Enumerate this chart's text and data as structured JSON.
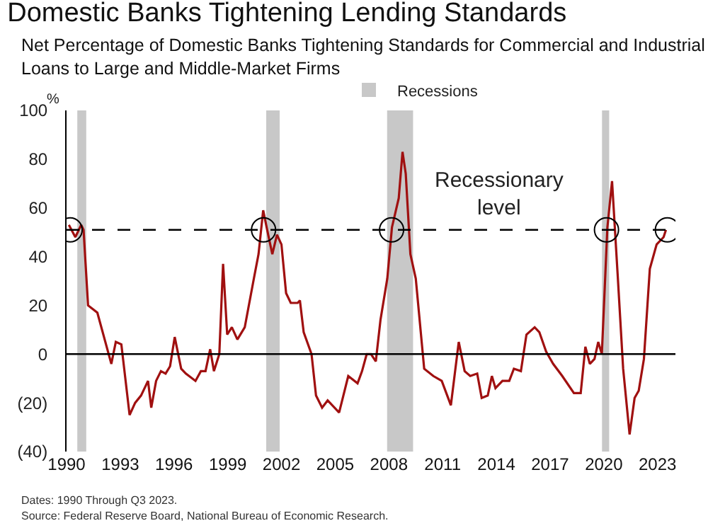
{
  "chart_data": {
    "type": "line",
    "title": "Domestic Banks Tightening Lending Standards",
    "subtitle": "Net Percentage of Domestic Banks Tightening Standards for Commercial and Industrial\nLoans to Large and Middle-Market Firms",
    "ylabel": "%",
    "xlim": [
      1990,
      2024
    ],
    "xticks": [
      1990,
      1993,
      1996,
      1999,
      2002,
      2005,
      2008,
      2011,
      2014,
      2017,
      2020,
      2023
    ],
    "ylim": [
      -40,
      100
    ],
    "yticks": [
      {
        "value": -40,
        "label": "(40)"
      },
      {
        "value": -20,
        "label": "(20)"
      },
      0,
      20,
      40,
      60,
      80,
      100
    ],
    "grid": false,
    "legend": "top",
    "series": [
      {
        "color": "#a01010",
        "x": [
          1990.13,
          1990.49,
          1990.82,
          1990.95,
          1991.2,
          1991.72,
          1992.5,
          1992.75,
          1993.06,
          1993.52,
          1993.83,
          1994.16,
          1994.55,
          1994.73,
          1995.0,
          1995.27,
          1995.53,
          1995.78,
          1996.04,
          1996.4,
          1996.66,
          1997.2,
          1997.5,
          1997.76,
          1998.02,
          1998.23,
          1998.53,
          1998.74,
          1998.97,
          1999.23,
          1999.54,
          1999.95,
          2000.46,
          2000.72,
          2000.98,
          2001.23,
          2001.49,
          2001.75,
          2002.0,
          2002.26,
          2002.52,
          2002.9,
          2003.03,
          2003.24,
          2003.68,
          2003.93,
          2004.27,
          2004.58,
          2005.22,
          2005.73,
          2006.25,
          2006.5,
          2006.76,
          2007.0,
          2007.27,
          2007.53,
          2007.91,
          2008.17,
          2008.55,
          2008.76,
          2008.94,
          2009.2,
          2009.5,
          2009.97,
          2010.48,
          2010.95,
          2011.46,
          2011.9,
          2012.23,
          2012.54,
          2012.93,
          2013.18,
          2013.52,
          2013.75,
          2013.95,
          2014.34,
          2014.72,
          2014.98,
          2015.37,
          2015.68,
          2016.14,
          2016.4,
          2016.78,
          2017.17,
          2017.68,
          2018.33,
          2018.71,
          2018.97,
          2019.22,
          2019.48,
          2019.69,
          2019.89,
          2020.2,
          2020.46,
          2020.77,
          2021.08,
          2021.44,
          2021.72,
          2021.95,
          2022.24,
          2022.57,
          2022.95,
          2023.34,
          2023.47
        ],
        "values": [
          53,
          48,
          53,
          51,
          20,
          17,
          -4,
          5,
          4,
          -25,
          -20,
          -17,
          -11,
          -22,
          -11,
          -7,
          -8,
          -5,
          7,
          -6,
          -8,
          -11,
          -7,
          -7,
          2,
          -7,
          0,
          37,
          8,
          11,
          6,
          11,
          31,
          41,
          59,
          50,
          41,
          49,
          45,
          25,
          21,
          21,
          22,
          9,
          0,
          -17,
          -22,
          -19,
          -24,
          -9,
          -12,
          -7,
          0,
          0,
          -3,
          14,
          31,
          52,
          64,
          83,
          74,
          41,
          31,
          -6,
          -9,
          -11,
          -21,
          5,
          -7,
          -9,
          -8,
          -18,
          -17,
          -9,
          -14,
          -11,
          -11,
          -6,
          -7,
          8,
          11,
          9,
          1,
          -4,
          -9,
          -16,
          -16,
          3,
          -4,
          -2,
          5,
          0,
          52,
          71,
          33,
          -6,
          -33,
          -18,
          -15,
          -2,
          35,
          45,
          48,
          51
        ]
      },
      {
        "type": "scatter",
        "marker": "circle",
        "color": "#000000",
        "x": [
          1990.2,
          2001.0,
          2008.15,
          2020.15,
          2023.55
        ],
        "values": [
          51,
          51,
          51,
          51,
          51
        ]
      }
    ],
    "ref_lines": [
      {
        "axis": "y",
        "value": 0,
        "color": "#000000",
        "line_style": "solid"
      },
      {
        "axis": "y",
        "value": 51,
        "label": "Recessionary\nlevel",
        "color": "#000000",
        "line_style": "dashed"
      }
    ],
    "bands": [
      {
        "axis": "x",
        "from": 1990.6,
        "to": 1991.1,
        "label": "Recessions",
        "color": "#c8c8c8"
      },
      {
        "axis": "x",
        "from": 2001.15,
        "to": 2001.9,
        "color": "#c8c8c8"
      },
      {
        "axis": "x",
        "from": 2007.9,
        "to": 2009.35,
        "color": "#c8c8c8"
      },
      {
        "axis": "x",
        "from": 2019.9,
        "to": 2020.3,
        "color": "#c8c8c8"
      }
    ],
    "annotations": [
      "Dates: 1990 Through Q3 2023.",
      "Source: Federal Reserve Board, National Bureau of Economic Research."
    ]
  }
}
